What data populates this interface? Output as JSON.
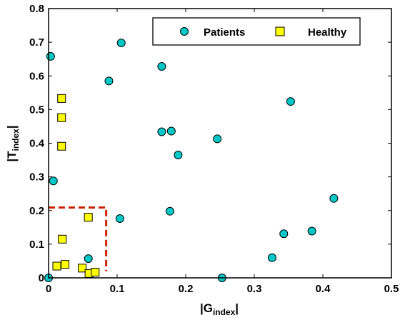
{
  "chart_data": {
    "type": "scatter",
    "xlabel": {
      "main": "|G",
      "sub": "index",
      "tail": "|"
    },
    "ylabel": {
      "main": "|T",
      "sub": "index",
      "tail": "|"
    },
    "xlim": [
      0,
      0.5
    ],
    "ylim": [
      0,
      0.8
    ],
    "xticks": [
      0,
      0.1,
      0.2,
      0.3,
      0.4,
      0.5
    ],
    "xtick_labels": [
      "0",
      "0.1",
      "0.2",
      "0.3",
      "0.4",
      "0.5"
    ],
    "yticks": [
      0,
      0.1,
      0.2,
      0.3,
      0.4,
      0.5,
      0.6,
      0.7,
      0.8
    ],
    "ytick_labels": [
      "0",
      "0.1",
      "0.2",
      "0.3",
      "0.4",
      "0.5",
      "0.6",
      "0.7",
      "0.8"
    ],
    "grid": false,
    "legend_position": "top-right",
    "series": [
      {
        "name": "Patients",
        "marker": "circle",
        "color": "#00C8C8",
        "points": [
          [
            0.003,
            0.658
          ],
          [
            0.106,
            0.698
          ],
          [
            0.088,
            0.585
          ],
          [
            0.165,
            0.628
          ],
          [
            0.353,
            0.524
          ],
          [
            0.165,
            0.434
          ],
          [
            0.179,
            0.436
          ],
          [
            0.246,
            0.413
          ],
          [
            0.189,
            0.365
          ],
          [
            0.007,
            0.288
          ],
          [
            0.416,
            0.236
          ],
          [
            0.104,
            0.176
          ],
          [
            0.177,
            0.198
          ],
          [
            0.343,
            0.131
          ],
          [
            0.384,
            0.139
          ],
          [
            0.326,
            0.06
          ],
          [
            0.058,
            0.057
          ],
          [
            0.253,
            0.0
          ],
          [
            0.0,
            0.0
          ]
        ]
      },
      {
        "name": "Healthy",
        "marker": "square",
        "color": "#FFFF00",
        "points": [
          [
            0.019,
            0.533
          ],
          [
            0.019,
            0.476
          ],
          [
            0.019,
            0.391
          ],
          [
            0.058,
            0.18
          ],
          [
            0.02,
            0.115
          ],
          [
            0.012,
            0.035
          ],
          [
            0.024,
            0.04
          ],
          [
            0.049,
            0.029
          ],
          [
            0.059,
            0.013
          ],
          [
            0.068,
            0.017
          ]
        ]
      }
    ],
    "annotations": [
      {
        "type": "dashed_region",
        "color": "#CC2200",
        "x": [
          0,
          0.084
        ],
        "y": [
          0.02,
          0.209
        ]
      }
    ]
  }
}
